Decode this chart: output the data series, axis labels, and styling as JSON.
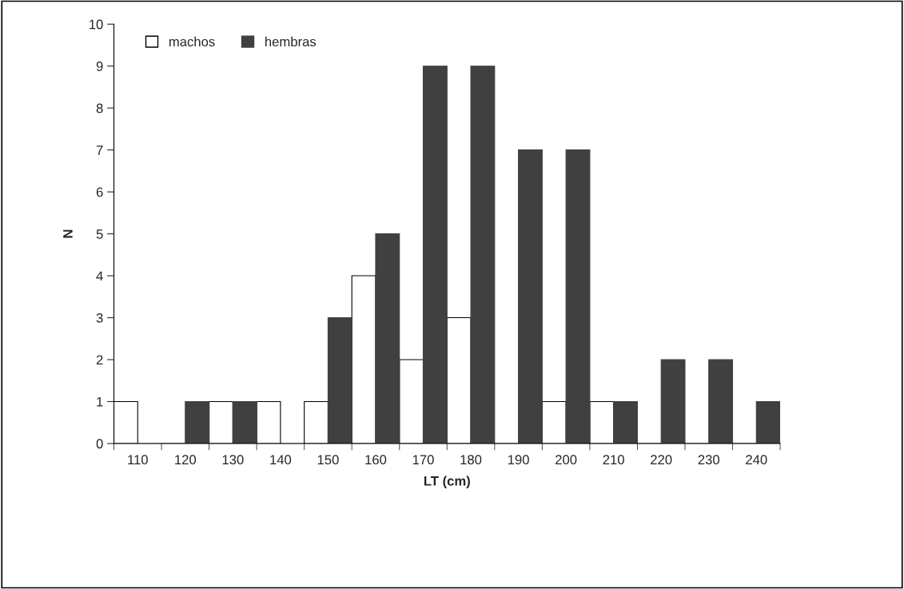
{
  "chart_data": {
    "type": "bar",
    "xlabel": "LT (cm)",
    "ylabel": "N",
    "categories": [
      "110",
      "120",
      "130",
      "140",
      "150",
      "160",
      "170",
      "180",
      "190",
      "200",
      "210",
      "220",
      "230",
      "240"
    ],
    "series": [
      {
        "name": "machos",
        "color": "#ffffff",
        "values": [
          1,
          0,
          1,
          1,
          1,
          4,
          2,
          3,
          0,
          1,
          1,
          0,
          0,
          0
        ]
      },
      {
        "name": "hembras",
        "color": "#404040",
        "values": [
          0,
          1,
          1,
          0,
          3,
          5,
          9,
          9,
          7,
          7,
          1,
          2,
          2,
          1
        ]
      }
    ],
    "ylim": [
      0,
      10
    ],
    "yticks": [
      0,
      1,
      2,
      3,
      4,
      5,
      6,
      7,
      8,
      9,
      10
    ],
    "grid": false,
    "legend": "top left"
  }
}
